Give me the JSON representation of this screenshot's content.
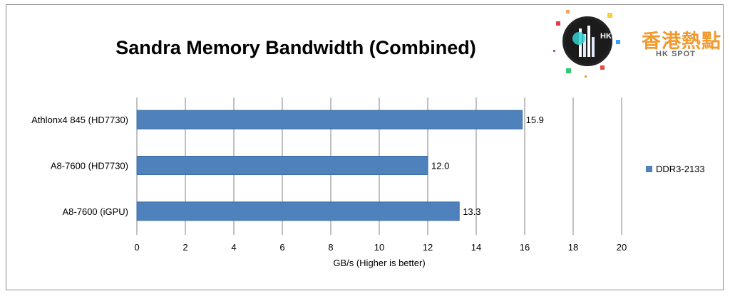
{
  "colors": {
    "bar": "#4f81bd",
    "grid": "#808080",
    "text": "#000000",
    "brand_orange": "#f29a2e",
    "brand_gray": "#666666"
  },
  "brand": {
    "cn": "香港熱點",
    "en": "HK SPOT",
    "icon": "hkspot-logo-icon"
  },
  "chart_data": {
    "type": "bar",
    "orientation": "horizontal",
    "title": "Sandra Memory Bandwidth (Combined)",
    "xlabel": "GB/s (Higher is better)",
    "ylabel": "",
    "xlim": [
      0,
      20
    ],
    "xticks": [
      0,
      2,
      4,
      6,
      8,
      10,
      12,
      14,
      16,
      18,
      20
    ],
    "categories": [
      "Athlonx4 845 (HD7730)",
      "A8-7600 (HD7730)",
      "A8-7600 (iGPU)"
    ],
    "series": [
      {
        "name": "DDR3-2133",
        "values": [
          15.9,
          12.0,
          13.3
        ],
        "labels": [
          "15.9",
          "12.0",
          "13.3"
        ]
      }
    ],
    "grid": "vertical",
    "legend": "right"
  }
}
